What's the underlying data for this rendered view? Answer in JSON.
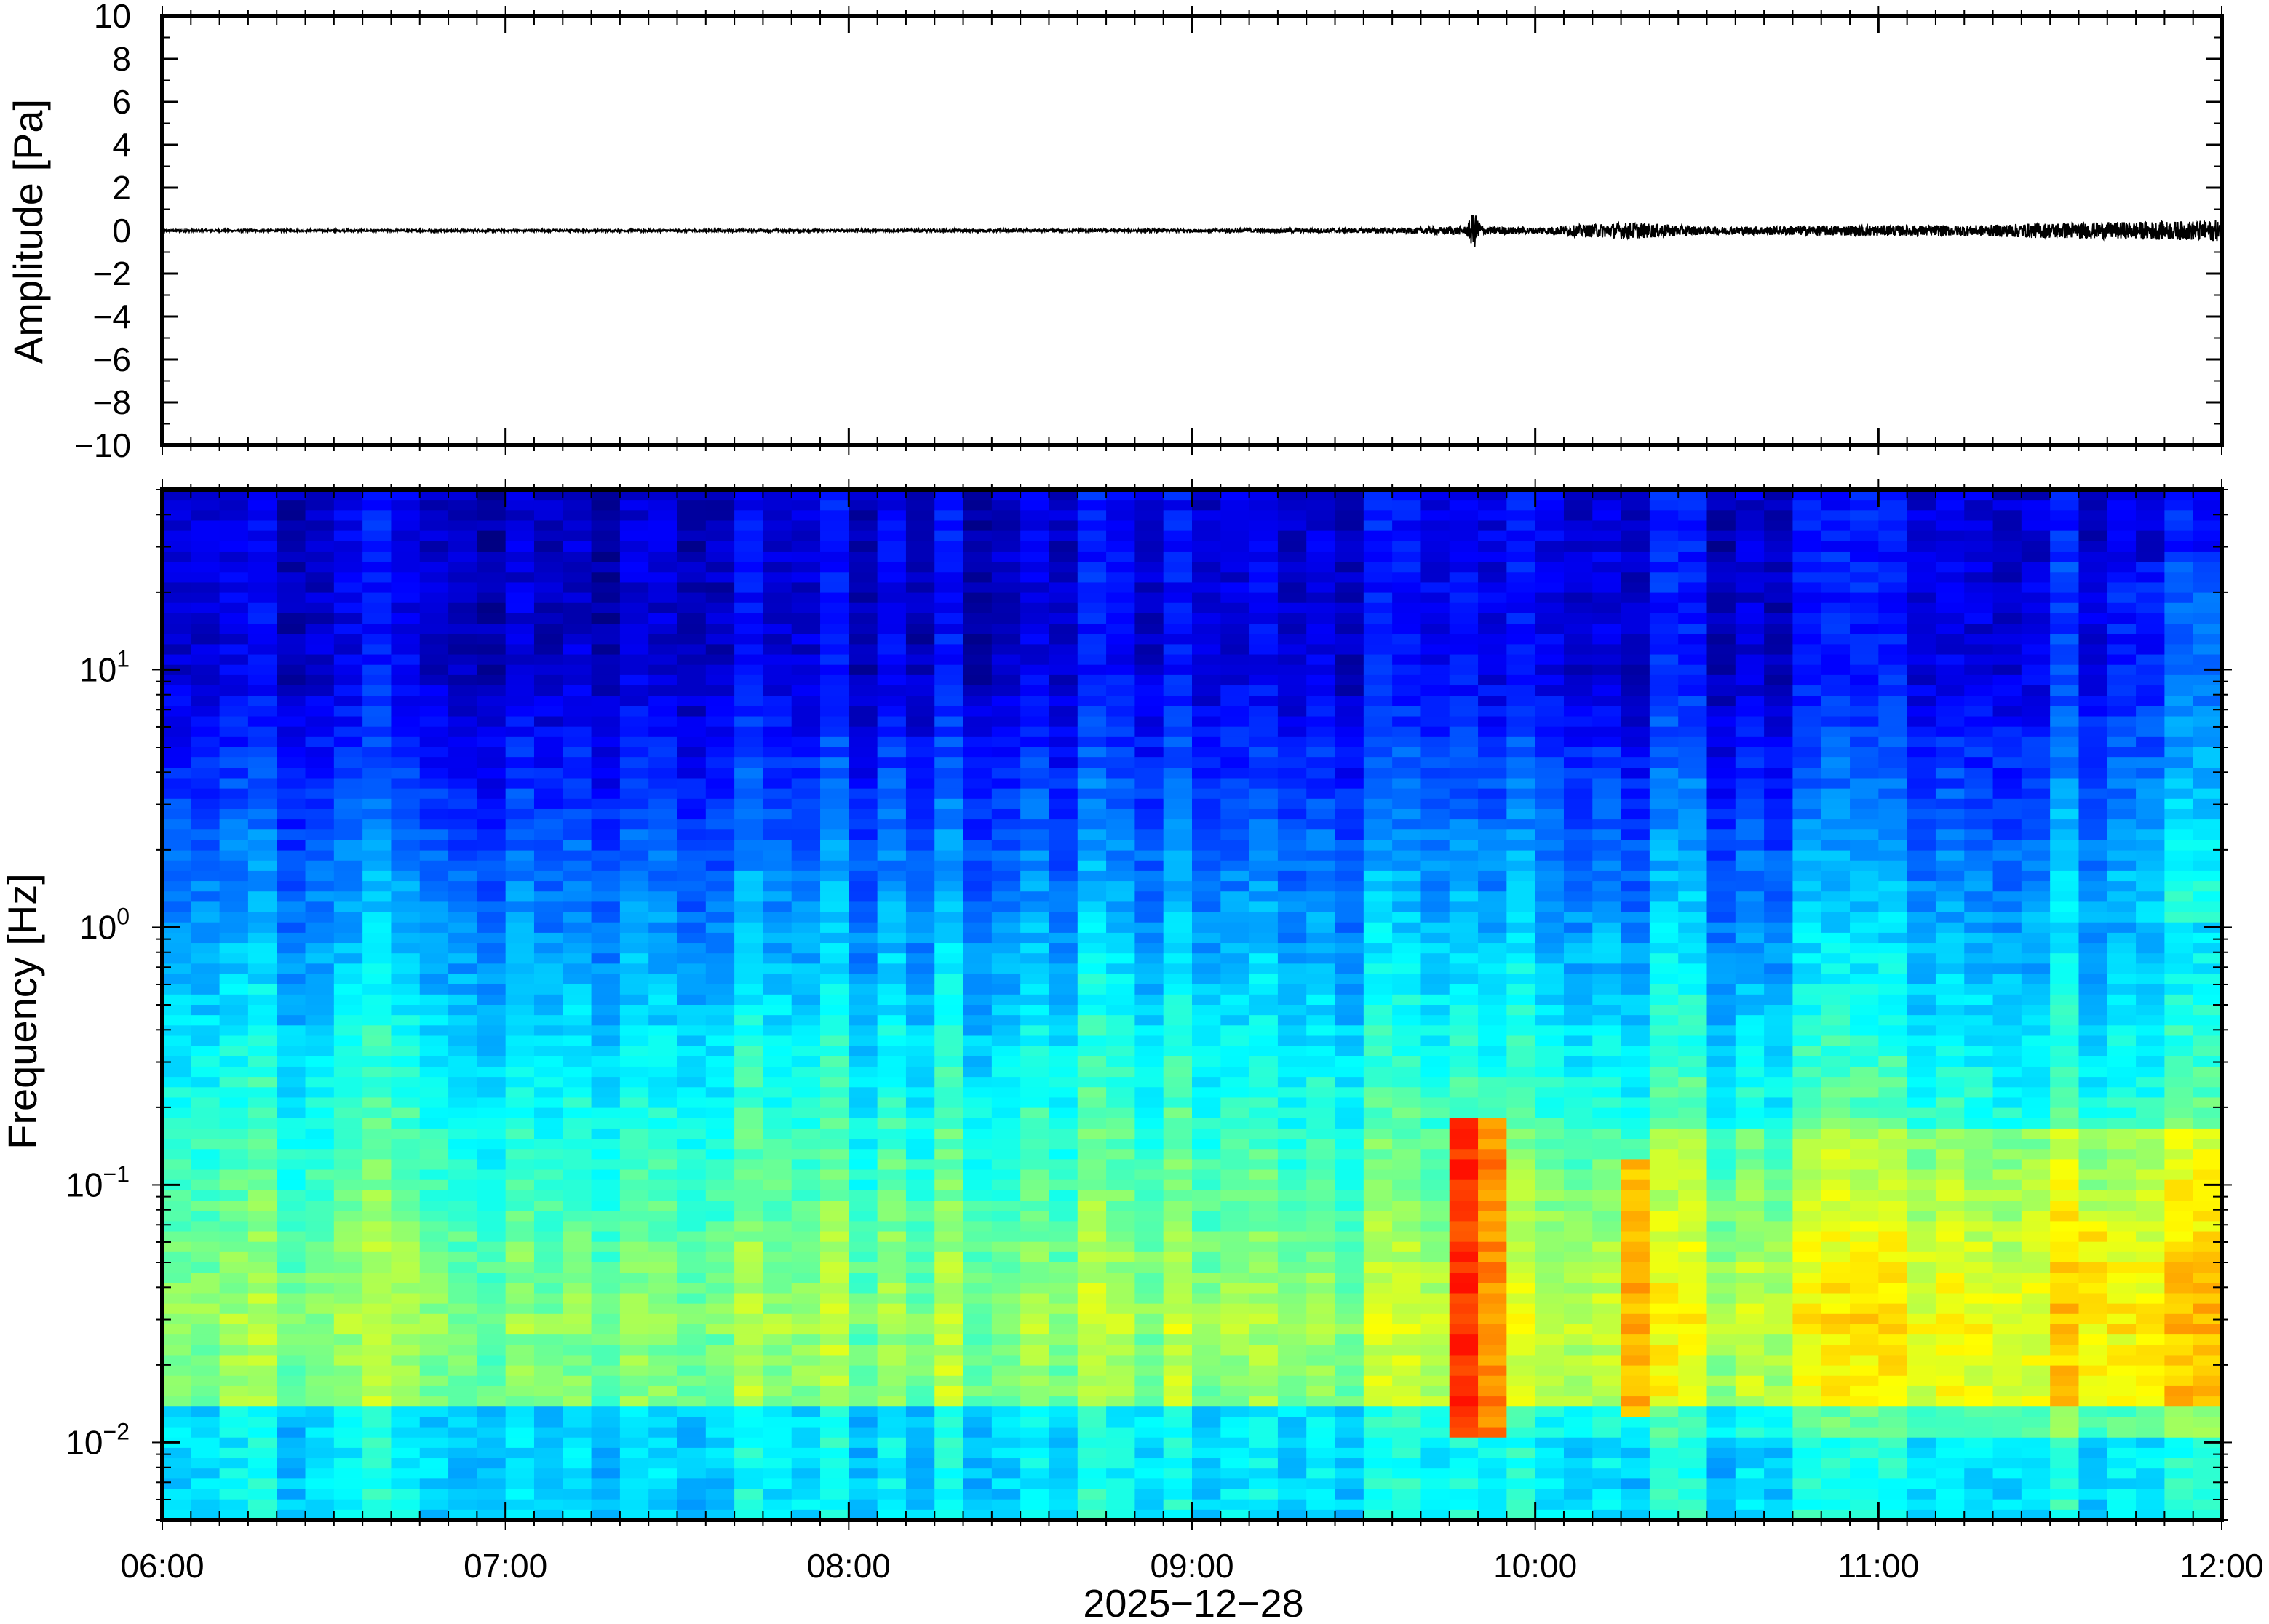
{
  "chart_data": [
    {
      "type": "line",
      "panel": "waveform",
      "ylabel": "Amplitude [Pa]",
      "ylim": [
        -10,
        10
      ],
      "yticks": [
        "10",
        "8",
        "6",
        "4",
        "2",
        "0",
        "−2",
        "−4",
        "−6",
        "−8",
        "−10"
      ],
      "ytick_values": [
        10,
        8,
        6,
        4,
        2,
        0,
        -2,
        -4,
        -6,
        -8,
        -10
      ],
      "x_range": [
        "2025-12-28 06:00",
        "2025-12-28 12:00"
      ],
      "series": [
        {
          "x_hours": [
            6.0,
            7.0,
            8.0,
            9.0,
            9.6,
            9.8,
            9.82,
            9.85,
            10.0,
            10.27,
            10.5,
            10.95,
            11.3,
            11.45,
            11.7,
            11.9,
            12.0
          ],
          "y_envelope": [
            0.05,
            0.05,
            0.06,
            0.07,
            0.12,
            0.2,
            0.9,
            0.2,
            0.15,
            0.4,
            0.18,
            0.25,
            0.25,
            0.35,
            0.4,
            0.45,
            0.5
          ]
        }
      ]
    },
    {
      "type": "heatmap",
      "panel": "spectrogram",
      "ylabel": "Frequency [Hz]",
      "yscale": "log",
      "ylim": [
        0.005,
        50
      ],
      "yticks": [
        {
          "value": 0.01,
          "base": "10",
          "exp": "−2"
        },
        {
          "value": 0.1,
          "base": "10",
          "exp": "−1"
        },
        {
          "value": 1,
          "base": "10",
          "exp": "0"
        },
        {
          "value": 10,
          "base": "10",
          "exp": "1"
        }
      ],
      "xticks": [
        "06:00",
        "07:00",
        "08:00",
        "09:00",
        "10:00",
        "11:00",
        "12:00"
      ],
      "xlabel": "2025−12−28",
      "colormap": "jet",
      "events": [
        {
          "time_hours": 9.82,
          "fmin": 0.01,
          "fmax": 0.18,
          "level": 0.85
        },
        {
          "time_hours": 10.27,
          "fmin": 0.012,
          "fmax": 0.12,
          "level": 0.78
        },
        {
          "time_hours": 11.6,
          "fmin": 0.015,
          "fmax": 0.07,
          "level": 0.72
        }
      ]
    }
  ]
}
